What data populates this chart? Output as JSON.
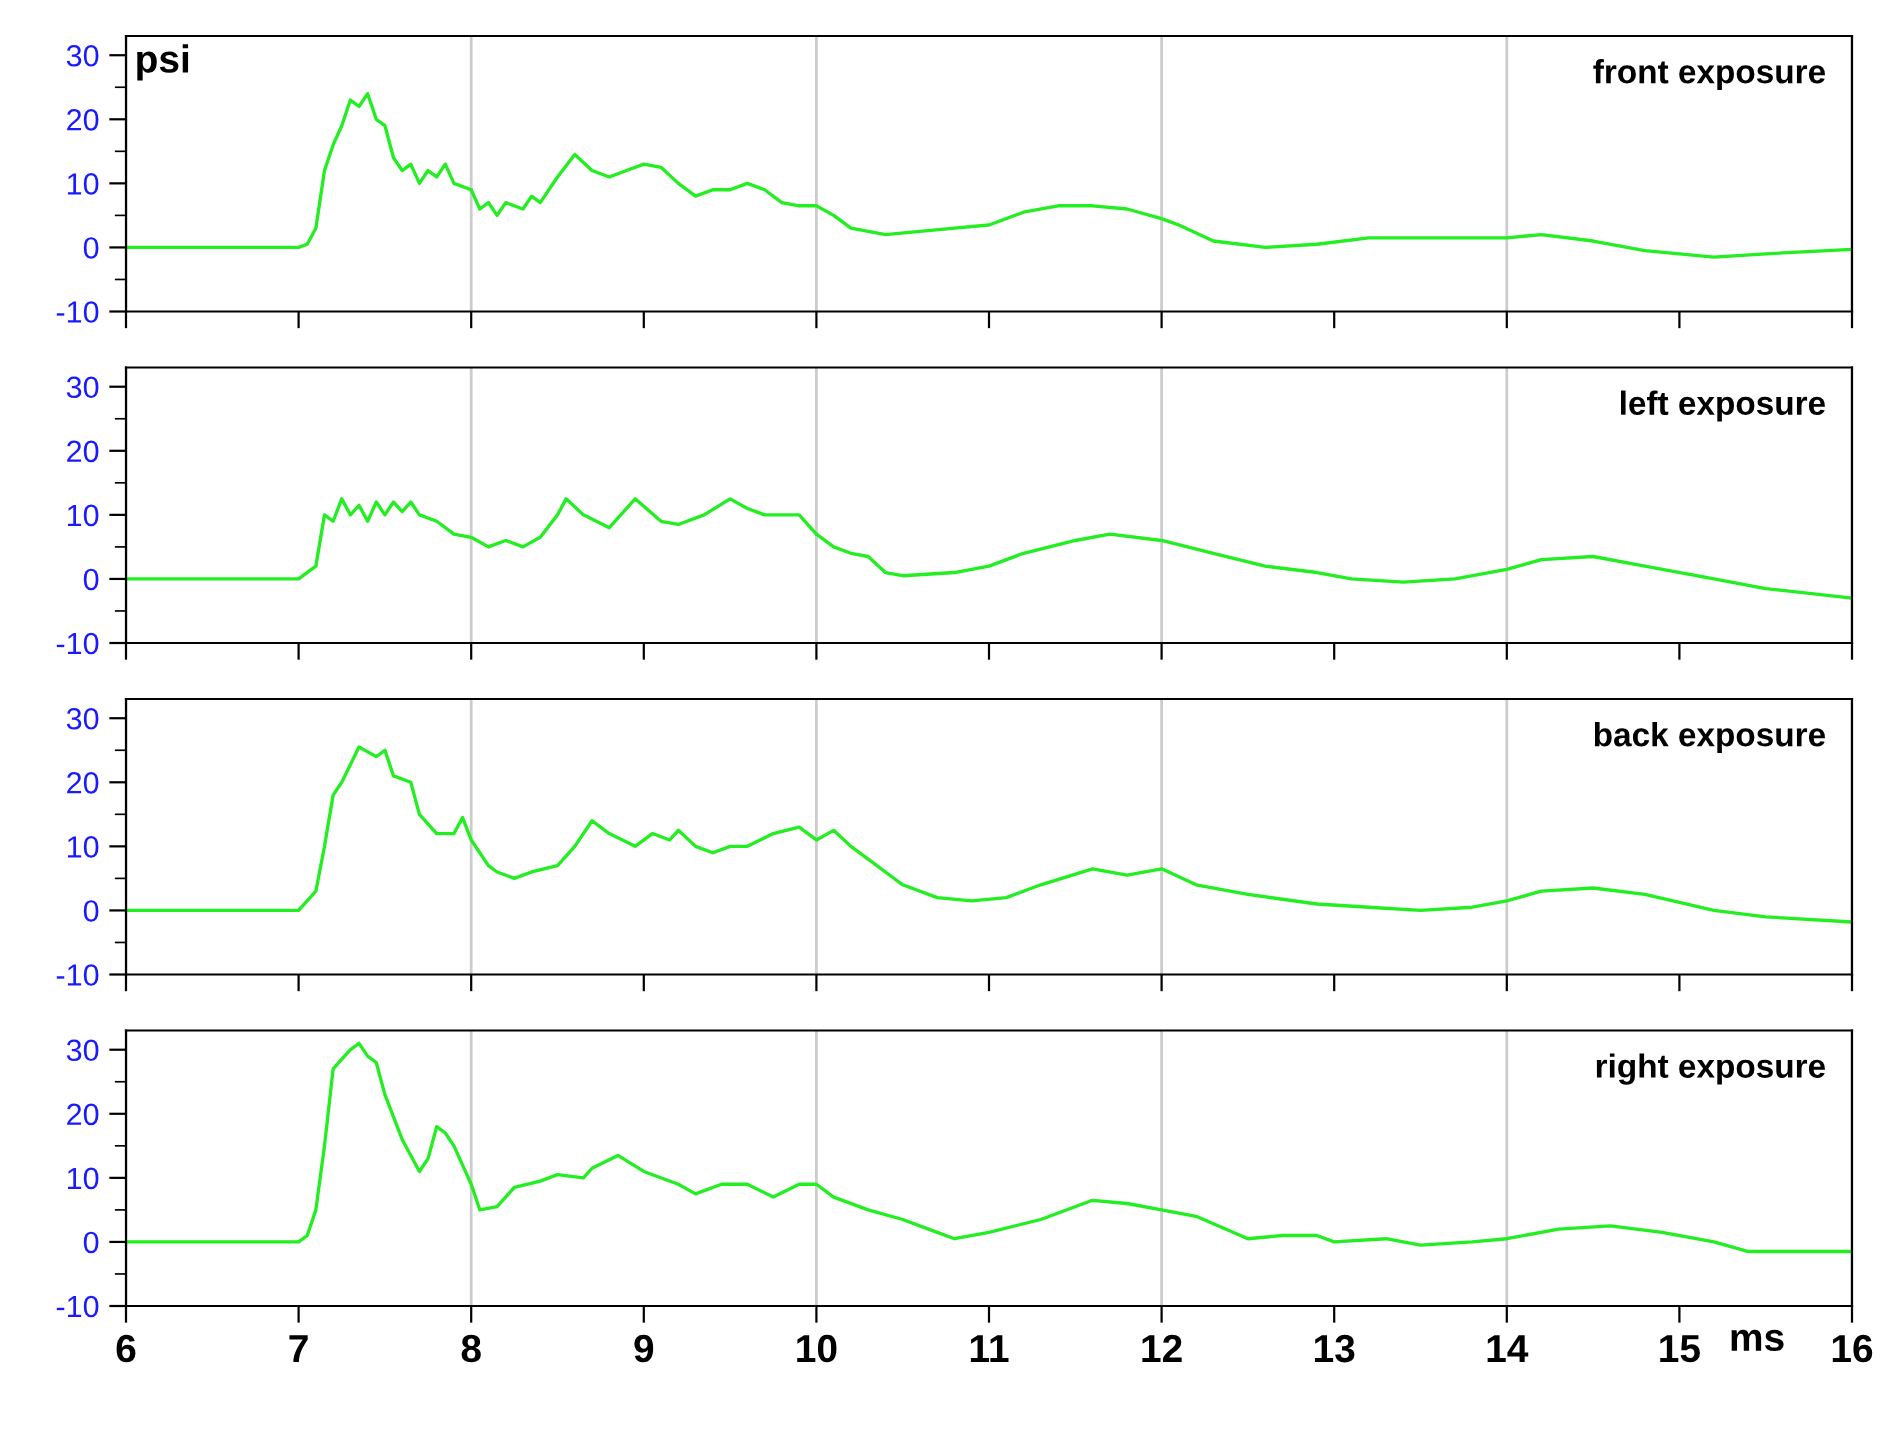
{
  "chart_data": [
    {
      "type": "line",
      "title": "front exposure",
      "ylabel": "psi",
      "tick_labels": "y",
      "grid": "x",
      "xlim": [
        6,
        16
      ],
      "xticks": [
        6,
        7,
        8,
        9,
        10,
        11,
        12,
        13,
        14,
        15,
        16
      ],
      "ylim": [
        -10,
        33
      ],
      "yticks": [
        -10,
        0,
        10,
        20,
        30
      ],
      "series": [
        {
          "color": "#22ee22",
          "x": [
            6,
            7.0,
            7.05,
            7.1,
            7.15,
            7.2,
            7.25,
            7.3,
            7.35,
            7.4,
            7.45,
            7.5,
            7.55,
            7.6,
            7.65,
            7.7,
            7.75,
            7.8,
            7.85,
            7.9,
            8.0,
            8.05,
            8.1,
            8.15,
            8.2,
            8.3,
            8.35,
            8.4,
            8.5,
            8.6,
            8.7,
            8.8,
            8.9,
            9.0,
            9.1,
            9.2,
            9.3,
            9.4,
            9.5,
            9.6,
            9.7,
            9.8,
            9.9,
            10.0,
            10.1,
            10.2,
            10.4,
            10.6,
            10.8,
            11.0,
            11.2,
            11.4,
            11.6,
            11.8,
            12.0,
            12.1,
            12.3,
            12.6,
            12.9,
            13.2,
            13.5,
            13.8,
            14.0,
            14.2,
            14.5,
            14.8,
            15.0,
            15.2,
            15.5,
            16.0
          ],
          "values": [
            0,
            0,
            0.5,
            3,
            12,
            16,
            19,
            23,
            22,
            24,
            20,
            19,
            14,
            12,
            13,
            10,
            12,
            11,
            13,
            10,
            9,
            6,
            7,
            5,
            7,
            6,
            8,
            7,
            11,
            14.5,
            12,
            11,
            12,
            13,
            12.5,
            10,
            8,
            9,
            9,
            10,
            9,
            7,
            6.5,
            6.5,
            5,
            3,
            2,
            2.5,
            3,
            3.5,
            5.5,
            6.5,
            6.5,
            6,
            4.5,
            3.5,
            1,
            0,
            0.5,
            1.5,
            1.5,
            1.5,
            1.5,
            2,
            1,
            -0.5,
            -1,
            -1.5,
            -1,
            -0.3
          ]
        }
      ]
    },
    {
      "type": "line",
      "title": "left exposure",
      "tick_labels": "y",
      "grid": "x",
      "xlim": [
        6,
        16
      ],
      "xticks": [
        6,
        7,
        8,
        9,
        10,
        11,
        12,
        13,
        14,
        15,
        16
      ],
      "ylim": [
        -10,
        33
      ],
      "yticks": [
        -10,
        0,
        10,
        20,
        30
      ],
      "series": [
        {
          "color": "#22ee22",
          "x": [
            6,
            7.0,
            7.1,
            7.15,
            7.2,
            7.25,
            7.3,
            7.35,
            7.4,
            7.45,
            7.5,
            7.55,
            7.6,
            7.65,
            7.7,
            7.8,
            7.9,
            8.0,
            8.1,
            8.2,
            8.3,
            8.4,
            8.5,
            8.55,
            8.65,
            8.8,
            8.95,
            9.1,
            9.2,
            9.35,
            9.5,
            9.6,
            9.7,
            9.9,
            10.0,
            10.1,
            10.2,
            10.3,
            10.4,
            10.5,
            10.8,
            11.0,
            11.2,
            11.5,
            11.7,
            12.0,
            12.3,
            12.6,
            12.9,
            13.1,
            13.4,
            13.7,
            14.0,
            14.2,
            14.5,
            14.8,
            15.2,
            15.5,
            16.0
          ],
          "values": [
            0,
            0,
            2,
            10,
            9,
            12.5,
            10,
            11.5,
            9,
            12,
            10,
            12,
            10.5,
            12,
            10,
            9,
            7,
            6.5,
            5,
            6,
            5,
            6.5,
            10,
            12.5,
            10,
            8,
            12.5,
            9,
            8.5,
            10,
            12.5,
            11,
            10,
            10,
            7,
            5,
            4,
            3.5,
            1,
            0.5,
            1,
            2,
            4,
            6,
            7,
            6,
            4,
            2,
            1,
            0,
            -0.5,
            0,
            1.5,
            3,
            3.5,
            2,
            0,
            -1.5,
            -3
          ]
        }
      ]
    },
    {
      "type": "line",
      "title": "back exposure",
      "tick_labels": "y",
      "grid": "x",
      "xlim": [
        6,
        16
      ],
      "xticks": [
        6,
        7,
        8,
        9,
        10,
        11,
        12,
        13,
        14,
        15,
        16
      ],
      "ylim": [
        -10,
        33
      ],
      "yticks": [
        -10,
        0,
        10,
        20,
        30
      ],
      "series": [
        {
          "color": "#22ee22",
          "x": [
            6,
            7.0,
            7.1,
            7.15,
            7.2,
            7.25,
            7.35,
            7.45,
            7.5,
            7.55,
            7.65,
            7.7,
            7.8,
            7.9,
            7.95,
            8.0,
            8.1,
            8.15,
            8.25,
            8.35,
            8.5,
            8.6,
            8.7,
            8.8,
            8.95,
            9.05,
            9.15,
            9.2,
            9.3,
            9.4,
            9.5,
            9.6,
            9.75,
            9.9,
            10.0,
            10.1,
            10.2,
            10.3,
            10.4,
            10.5,
            10.7,
            10.9,
            11.1,
            11.3,
            11.6,
            11.8,
            12.0,
            12.2,
            12.5,
            12.9,
            13.2,
            13.5,
            13.8,
            14.0,
            14.2,
            14.5,
            14.8,
            15.2,
            15.5,
            16.0
          ],
          "values": [
            0,
            0,
            3,
            10,
            18,
            20,
            25.5,
            24,
            25,
            21,
            20,
            15,
            12,
            12,
            14.5,
            11,
            7,
            6,
            5,
            6,
            7,
            10,
            14,
            12,
            10,
            12,
            11,
            12.5,
            10,
            9,
            10,
            10,
            12,
            13,
            11,
            12.5,
            10,
            8,
            6,
            4,
            2,
            1.5,
            2,
            4,
            6.5,
            5.5,
            6.5,
            4,
            2.5,
            1,
            0.5,
            0,
            0.5,
            1.5,
            3,
            3.5,
            2.5,
            0,
            -1,
            -1.8
          ]
        }
      ]
    },
    {
      "type": "line",
      "title": "right exposure",
      "xlabel": "ms",
      "grid": "x",
      "xlim": [
        6,
        16
      ],
      "xticks": [
        6,
        7,
        8,
        9,
        10,
        11,
        12,
        13,
        14,
        15,
        16
      ],
      "ylim": [
        -10,
        33
      ],
      "yticks": [
        -10,
        0,
        10,
        20,
        30
      ],
      "series": [
        {
          "color": "#22ee22",
          "x": [
            6,
            7.0,
            7.05,
            7.1,
            7.15,
            7.2,
            7.3,
            7.35,
            7.4,
            7.45,
            7.5,
            7.6,
            7.7,
            7.75,
            7.8,
            7.85,
            7.9,
            8.0,
            8.05,
            8.15,
            8.25,
            8.4,
            8.5,
            8.65,
            8.7,
            8.85,
            9.0,
            9.2,
            9.3,
            9.45,
            9.6,
            9.75,
            9.9,
            10.0,
            10.1,
            10.3,
            10.5,
            10.7,
            10.8,
            11.0,
            11.3,
            11.6,
            11.8,
            12.0,
            12.2,
            12.5,
            12.7,
            12.9,
            13.0,
            13.3,
            13.5,
            13.8,
            14.0,
            14.3,
            14.6,
            14.9,
            15.2,
            15.4,
            16.0
          ],
          "values": [
            0,
            0,
            1,
            5,
            15,
            27,
            30,
            31,
            29,
            28,
            23,
            16,
            11,
            13,
            18,
            17,
            15,
            9,
            5,
            5.5,
            8.5,
            9.5,
            10.5,
            10,
            11.5,
            13.5,
            11,
            9,
            7.5,
            9,
            9,
            7,
            9,
            9,
            7,
            5,
            3.5,
            1.5,
            0.5,
            1.5,
            3.5,
            6.5,
            6,
            5,
            4,
            0.5,
            1,
            1,
            0,
            0.5,
            -0.5,
            0,
            0.5,
            2,
            2.5,
            1.5,
            0,
            -1.5,
            -1.5
          ]
        }
      ]
    }
  ]
}
